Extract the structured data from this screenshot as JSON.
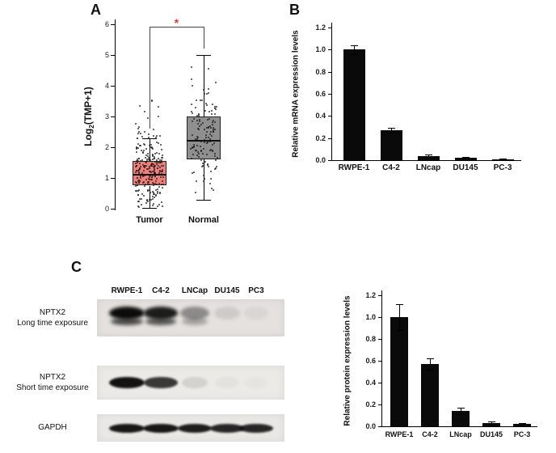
{
  "panels": {
    "a": {
      "label": "A"
    },
    "b": {
      "label": "B"
    },
    "c": {
      "label": "C"
    }
  },
  "chart_data": [
    {
      "id": "tumor_normal_boxplot",
      "type": "box",
      "ylabel": {
        "prefix": "Log",
        "sub": "2",
        "suffix": "(TMP+1)"
      },
      "ylim": [
        0,
        6
      ],
      "yticks": [
        0,
        1,
        2,
        3,
        4,
        5,
        6
      ],
      "categories": [
        "Tumor",
        "Normal"
      ],
      "series": [
        {
          "name": "Tumor",
          "color": "#ef7f7b",
          "median": 1.1,
          "q1": 0.75,
          "q3": 1.55,
          "whisker_low": 0.02,
          "whisker_high": 2.3,
          "points_mean": 1.15,
          "points_sd": 0.55,
          "points_n": 260,
          "points_max": 3.55
        },
        {
          "name": "Normal",
          "color": "#8f8f8f",
          "median": 2.2,
          "q1": 1.6,
          "q3": 3.0,
          "whisker_low": 0.3,
          "whisker_high": 5.0,
          "points_mean": 2.3,
          "points_sd": 0.9,
          "points_n": 135,
          "points_max": 5.0
        }
      ],
      "significance": {
        "symbol": "*",
        "color": "#e23a2e"
      }
    },
    {
      "id": "mrna_expression",
      "type": "bar",
      "ylabel": "Relative mRNA expression levels",
      "ylim": [
        0,
        1.2
      ],
      "yticks": [
        0,
        0.2,
        0.4,
        0.6,
        0.8,
        1,
        1.2
      ],
      "categories": [
        "RWPE-1",
        "C4-2",
        "LNcap",
        "DU145",
        "PC-3"
      ],
      "values": [
        1.0,
        0.27,
        0.04,
        0.02,
        0.01
      ],
      "errors": [
        0.04,
        0.02,
        0.01,
        0.008,
        0.005
      ],
      "bar_color": "#0a0a0a"
    },
    {
      "id": "protein_expression",
      "type": "bar",
      "ylabel": "Relative protein expression levels",
      "ylim": [
        0,
        1.2
      ],
      "yticks": [
        0,
        0.2,
        0.4,
        0.6,
        0.8,
        1,
        1.2
      ],
      "categories": [
        "RWPE-1",
        "C4-2",
        "LNcap",
        "DU145",
        "PC-3"
      ],
      "values": [
        1.0,
        0.57,
        0.14,
        0.03,
        0.02
      ],
      "errors": [
        0.12,
        0.05,
        0.03,
        0.012,
        0.008
      ],
      "bar_color": "#0a0a0a"
    }
  ],
  "western_blot": {
    "lanes": [
      "RWPE-1",
      "C4-2",
      "LNCap",
      "DU145",
      "PC3"
    ],
    "rows": [
      {
        "label": [
          "NPTX2",
          "Long time exposure"
        ],
        "band_intensities": [
          1.0,
          0.92,
          0.4,
          0.1,
          0.05
        ],
        "double_band": true
      },
      {
        "label": [
          "NPTX2",
          "Short time exposure"
        ],
        "band_intensities": [
          0.97,
          0.8,
          0.1,
          0.03,
          0.02
        ],
        "double_band": false
      },
      {
        "label": [
          "GAPDH"
        ],
        "band_intensities": [
          0.95,
          0.95,
          0.92,
          0.88,
          0.88
        ],
        "double_band": false
      }
    ]
  }
}
